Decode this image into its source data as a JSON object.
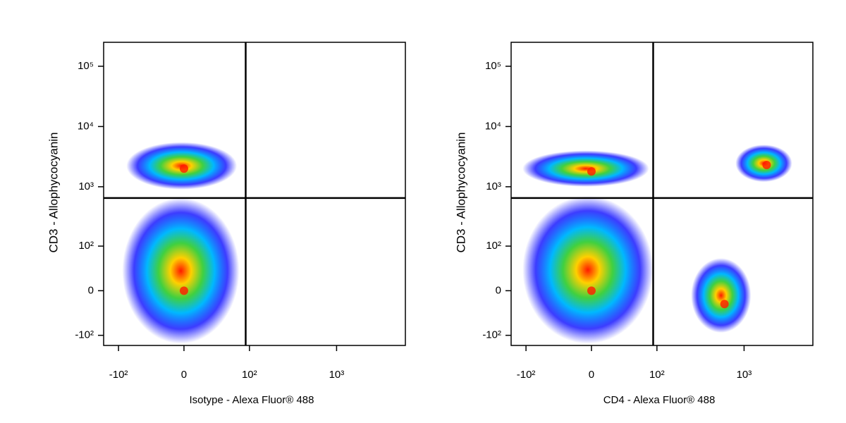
{
  "chart_data": [
    {
      "type": "scatter",
      "xlabel": "Isotype - Alexa Fluor® 488",
      "ylabel": "CD3 - Allophycocyanin",
      "xscale": "biexponential",
      "yscale": "biexponential",
      "xlim": [
        -150,
        6000
      ],
      "ylim": [
        -150,
        250000
      ],
      "xticks": [
        {
          "value": -100,
          "label": "-10²"
        },
        0,
        {
          "value": 100,
          "label": "10²"
        },
        {
          "value": 1000,
          "label": "10³"
        }
      ],
      "yticks": [
        {
          "value": -100,
          "label": "-10²"
        },
        0,
        {
          "value": 100,
          "label": "10²"
        },
        {
          "value": 1000,
          "label": "10³"
        },
        {
          "value": 10000,
          "label": "10⁴"
        },
        {
          "value": 100000,
          "label": "10⁵"
        }
      ],
      "gate": {
        "x": 90,
        "y": 650
      },
      "clusters": [
        {
          "x": 0,
          "y": 2000,
          "x_range": [
            -80,
            70
          ],
          "y_range": [
            900,
            5500
          ]
        },
        {
          "x": 0,
          "y": 0,
          "x_range": [
            -90,
            75
          ],
          "y_range": [
            -140,
            650
          ]
        }
      ]
    },
    {
      "type": "scatter",
      "xlabel": "CD4 - Alexa Fluor® 488",
      "ylabel": "CD3 - Allophycocyanin",
      "xscale": "biexponential",
      "yscale": "biexponential",
      "xlim": [
        -150,
        6000
      ],
      "ylim": [
        -150,
        250000
      ],
      "xticks": [
        {
          "value": -100,
          "label": "-10²"
        },
        0,
        {
          "value": 100,
          "label": "10²"
        },
        {
          "value": 1000,
          "label": "10³"
        }
      ],
      "yticks": [
        {
          "value": -100,
          "label": "-10²"
        },
        0,
        {
          "value": 100,
          "label": "10²"
        },
        {
          "value": 1000,
          "label": "10³"
        },
        {
          "value": 10000,
          "label": "10⁴"
        },
        {
          "value": 100000,
          "label": "10⁵"
        }
      ],
      "gate": {
        "x": 90,
        "y": 650
      },
      "clusters": [
        {
          "x": 0,
          "y": 1800,
          "x_range": [
            -110,
            80
          ],
          "y_range": [
            1000,
            4000
          ]
        },
        {
          "x": 1800,
          "y": 2300,
          "x_range": [
            800,
            3500
          ],
          "y_range": [
            1200,
            5000
          ]
        },
        {
          "x": 0,
          "y": 0,
          "x_range": [
            -110,
            90
          ],
          "y_range": [
            -140,
            700
          ]
        },
        {
          "x": 600,
          "y": -20,
          "x_range": [
            250,
            1200
          ],
          "y_range": [
            -90,
            60
          ]
        }
      ]
    }
  ]
}
